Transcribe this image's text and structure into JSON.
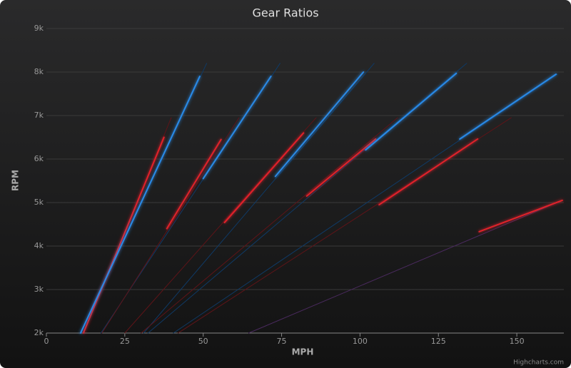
{
  "chart_data": {
    "type": "line",
    "title": "Gear Ratios",
    "x_label": "MPH",
    "y_label": "RPM",
    "credits": "Highcharts.com",
    "xlim": [
      0,
      165
    ],
    "xticks": [
      0,
      25,
      50,
      75,
      100,
      125,
      150
    ],
    "ylim": [
      2000,
      9000
    ],
    "yticks": [
      {
        "value": 2000,
        "label": "2k"
      },
      {
        "value": 3000,
        "label": "3k"
      },
      {
        "value": 4000,
        "label": "4k"
      },
      {
        "value": 5000,
        "label": "5k"
      },
      {
        "value": 6000,
        "label": "6k"
      },
      {
        "value": 7000,
        "label": "7k"
      },
      {
        "value": 8000,
        "label": "8k"
      },
      {
        "value": 9000,
        "label": "9k"
      }
    ],
    "grid": true,
    "series": [
      {
        "color": "#0f3a66",
        "width": 1,
        "x": [
          10.9,
          51.1
        ],
        "values": [
          2000,
          8200
        ]
      },
      {
        "color": "#0f3a66",
        "width": 1,
        "x": [
          17.4,
          74.5
        ],
        "values": [
          2000,
          8200
        ]
      },
      {
        "color": "#0f3a66",
        "width": 1,
        "x": [
          31,
          104.5
        ],
        "values": [
          2000,
          8200
        ]
      },
      {
        "color": "#0f3a66",
        "width": 1,
        "x": [
          32.4,
          134
        ],
        "values": [
          2000,
          8200
        ]
      },
      {
        "color": "#0f3a66",
        "width": 1,
        "x": [
          40.5,
          163
        ],
        "values": [
          2000,
          7950
        ]
      },
      {
        "color": "#5e1418",
        "width": 1,
        "x": [
          11.8,
          39.8
        ],
        "values": [
          2000,
          6950
        ]
      },
      {
        "color": "#5e1418",
        "width": 1,
        "x": [
          17.7,
          61.4
        ],
        "values": [
          2000,
          6950
        ]
      },
      {
        "color": "#5e1418",
        "width": 1,
        "x": [
          25,
          86
        ],
        "values": [
          2000,
          6950
        ]
      },
      {
        "color": "#5e1418",
        "width": 1,
        "x": [
          30.2,
          112
        ],
        "values": [
          2000,
          6950
        ]
      },
      {
        "color": "#5e1418",
        "width": 1,
        "x": [
          42,
          148.2
        ],
        "values": [
          2000,
          6950
        ]
      },
      {
        "color": "#4a2a5e",
        "width": 1,
        "x": [
          64.5,
          164.5
        ],
        "values": [
          2000,
          5050
        ]
      },
      {
        "color": "#e0222c",
        "width": 2,
        "x": [
          11.8,
          37.5
        ],
        "values": [
          2000,
          6500
        ]
      },
      {
        "color": "#e0222c",
        "width": 2,
        "x": [
          38.4,
          55.7
        ],
        "values": [
          4400,
          6450
        ]
      },
      {
        "color": "#e0222c",
        "width": 2,
        "x": [
          56.8,
          82
        ],
        "values": [
          4540,
          6600
        ]
      },
      {
        "color": "#e0222c",
        "width": 2,
        "x": [
          83,
          105
        ],
        "values": [
          5150,
          6460
        ]
      },
      {
        "color": "#e0222c",
        "width": 2,
        "x": [
          106.1,
          137.5
        ],
        "values": [
          4950,
          6460
        ]
      },
      {
        "color": "#e0222c",
        "width": 2,
        "x": [
          138,
          164.5
        ],
        "values": [
          4330,
          5050
        ]
      },
      {
        "color": "#2b8ae6",
        "width": 2,
        "x": [
          10.9,
          48.9
        ],
        "values": [
          2000,
          7900
        ]
      },
      {
        "color": "#2b8ae6",
        "width": 2,
        "x": [
          50,
          71.6
        ],
        "values": [
          5550,
          7900
        ]
      },
      {
        "color": "#2b8ae6",
        "width": 2,
        "x": [
          73,
          101.1
        ],
        "values": [
          5600,
          8000
        ]
      },
      {
        "color": "#2b8ae6",
        "width": 2,
        "x": [
          101.8,
          130.7
        ],
        "values": [
          6210,
          7970
        ]
      },
      {
        "color": "#2b8ae6",
        "width": 2,
        "x": [
          131.8,
          162.5
        ],
        "values": [
          6460,
          7950
        ]
      }
    ]
  }
}
